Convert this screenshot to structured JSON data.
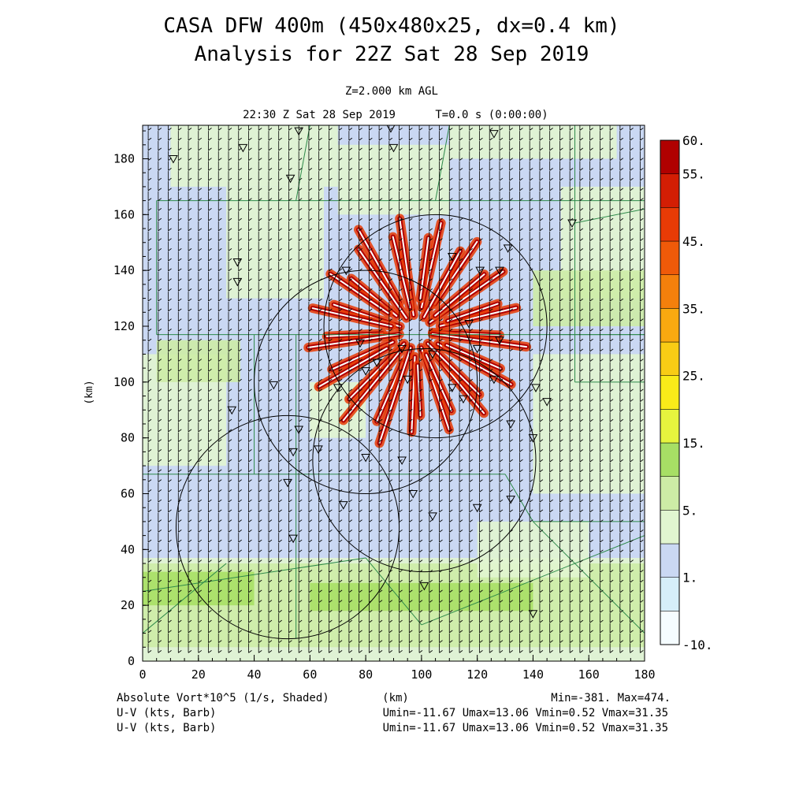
{
  "header": {
    "title_line1": "CASA DFW 400m (450x480x25, dx=0.4 km)",
    "title_line2": "Analysis for 22Z Sat 28 Sep 2019",
    "level": "Z=2.000 km AGL",
    "valid_time": "22:30 Z Sat 28 Sep 2019",
    "forecast_time": "T=0.0 s (0:00:00)"
  },
  "chart_data": {
    "type": "heatmap",
    "field": "Absolute Vort*10^5 (1/s, Shaded)",
    "xlabel": "(km)",
    "ylabel": "(km)",
    "xlim": [
      0,
      180
    ],
    "ylim": [
      0,
      192
    ],
    "x_ticks": [
      0,
      20,
      40,
      60,
      80,
      100,
      120,
      140,
      160,
      180
    ],
    "y_ticks": [
      0,
      20,
      40,
      60,
      80,
      100,
      120,
      140,
      160,
      180
    ],
    "colorbar": {
      "labels": [
        "60.",
        "55.",
        "45.",
        "35.",
        "25.",
        "15.",
        "5.",
        "1.",
        "-10."
      ],
      "colors": [
        "#f5fcff",
        "#d6eef9",
        "#cad8f3",
        "#e1f5d0",
        "#cdeca6",
        "#a7df65",
        "#e6f43e",
        "#f9eb19",
        "#f8cc15",
        "#f9a910",
        "#f4800c",
        "#ef5a09",
        "#e83b06",
        "#d31e04",
        "#b00000"
      ]
    },
    "radar_ring_centers_km": [
      [
        52,
        48
      ],
      [
        105,
        120
      ],
      [
        80,
        100
      ],
      [
        101,
        72
      ]
    ],
    "radar_ring_radius_km": 40,
    "station_markers_km": [
      [
        11,
        180
      ],
      [
        56,
        190
      ],
      [
        53,
        173
      ],
      [
        89,
        191
      ],
      [
        90,
        184
      ],
      [
        126,
        189
      ],
      [
        34,
        143
      ],
      [
        34,
        136
      ],
      [
        36,
        184
      ],
      [
        131,
        148
      ],
      [
        128,
        140
      ],
      [
        121,
        140
      ],
      [
        111,
        145
      ],
      [
        73,
        140
      ],
      [
        93,
        112
      ],
      [
        78,
        114
      ],
      [
        84,
        107
      ],
      [
        95,
        101
      ],
      [
        80,
        104
      ],
      [
        70,
        98
      ],
      [
        120,
        112
      ],
      [
        111,
        98
      ],
      [
        115,
        94
      ],
      [
        126,
        101
      ],
      [
        128,
        115
      ],
      [
        141,
        98
      ],
      [
        145,
        93
      ],
      [
        47,
        99
      ],
      [
        32,
        90
      ],
      [
        56,
        83
      ],
      [
        54,
        75
      ],
      [
        63,
        76
      ],
      [
        80,
        73
      ],
      [
        93,
        72
      ],
      [
        132,
        85
      ],
      [
        140,
        80
      ],
      [
        132,
        58
      ],
      [
        120,
        55
      ],
      [
        97,
        60
      ],
      [
        52,
        64
      ],
      [
        54,
        44
      ],
      [
        104,
        52
      ],
      [
        101,
        27
      ],
      [
        140,
        17
      ],
      [
        72,
        56
      ],
      [
        154,
        157
      ],
      [
        104,
        110
      ],
      [
        117,
        121
      ]
    ],
    "wind_barbs": "U-V (kts, Barb)",
    "stats": {
      "field_min": "Min=-381.",
      "field_max": "Max=474.",
      "umin": "Umin=-11.67",
      "umax": "Umax=13.06",
      "vmin": "Vmin=0.52",
      "vmax": "Vmax=31.35"
    }
  },
  "footer": {
    "line1_left": "Absolute Vort*10^5 (1/s, Shaded)",
    "line1_mid": "(km)",
    "line1_right": "Min=-381. Max=474.",
    "line2_left": "U-V (kts, Barb)",
    "line2_right": "Umin=-11.67 Umax=13.06 Vmin=0.52 Vmax=31.35",
    "line3_left": "U-V (kts, Barb)",
    "line3_right": "Umin=-11.67 Umax=13.06 Vmin=0.52 Vmax=31.35"
  }
}
